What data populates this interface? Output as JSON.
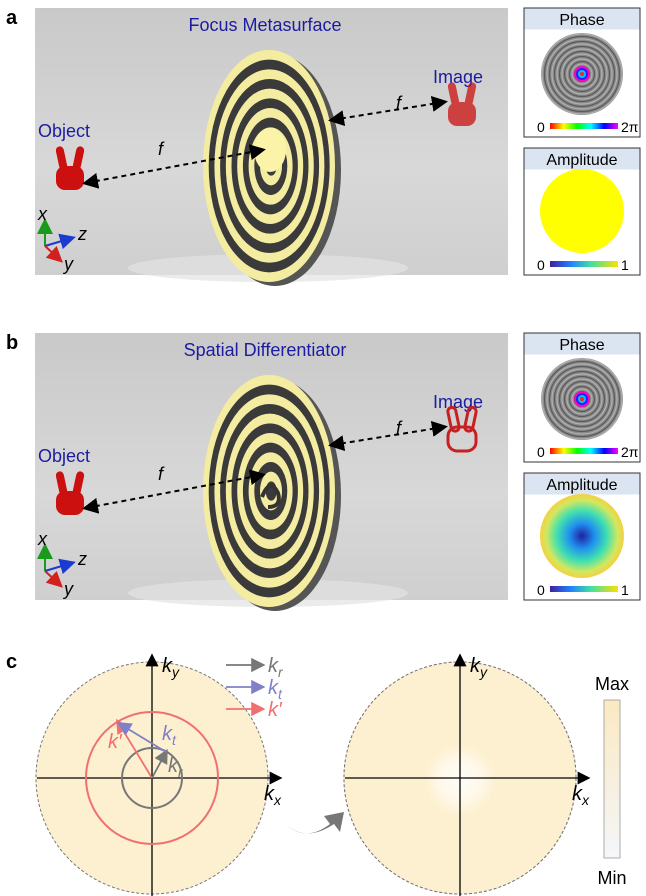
{
  "panels": [
    {
      "label": "a",
      "title": "Focus Metasurface",
      "object": "Object",
      "image": "Image",
      "focal_object": "f",
      "focal_image": "f",
      "axes": [
        "x",
        "z",
        "y"
      ],
      "phase": {
        "title": "Phase",
        "min": "0",
        "max": "2π"
      },
      "amplitude": {
        "title": "Amplitude",
        "min": "0",
        "max": "1"
      }
    },
    {
      "label": "b",
      "title": "Spatial Differentiator",
      "object": "Object",
      "image": "Image",
      "focal_object": "f",
      "focal_image": "f",
      "axes": [
        "x",
        "z",
        "y"
      ],
      "phase": {
        "title": "Phase",
        "min": "0",
        "max": "2π"
      },
      "amplitude": {
        "title": "Amplitude",
        "min": "0",
        "max": "1"
      }
    }
  ],
  "panel_c": {
    "label": "c",
    "legend": [
      {
        "main": "k",
        "sub": "r"
      },
      {
        "main": "k",
        "sub": "t"
      },
      {
        "main": "k′"
      }
    ],
    "left": {
      "ky": {
        "main": "k",
        "sub": "y"
      },
      "kx": {
        "main": "k",
        "sub": "x"
      },
      "kt": {
        "main": "k",
        "sub": "t"
      },
      "kprime": {
        "main": "k′"
      },
      "kr": {
        "main": "k",
        "sub": "r"
      }
    },
    "right": {
      "ky": {
        "main": "k",
        "sub": "y"
      },
      "kx": {
        "main": "k",
        "sub": "x"
      }
    },
    "colorbar": {
      "max": "Max",
      "min": "Min"
    }
  }
}
